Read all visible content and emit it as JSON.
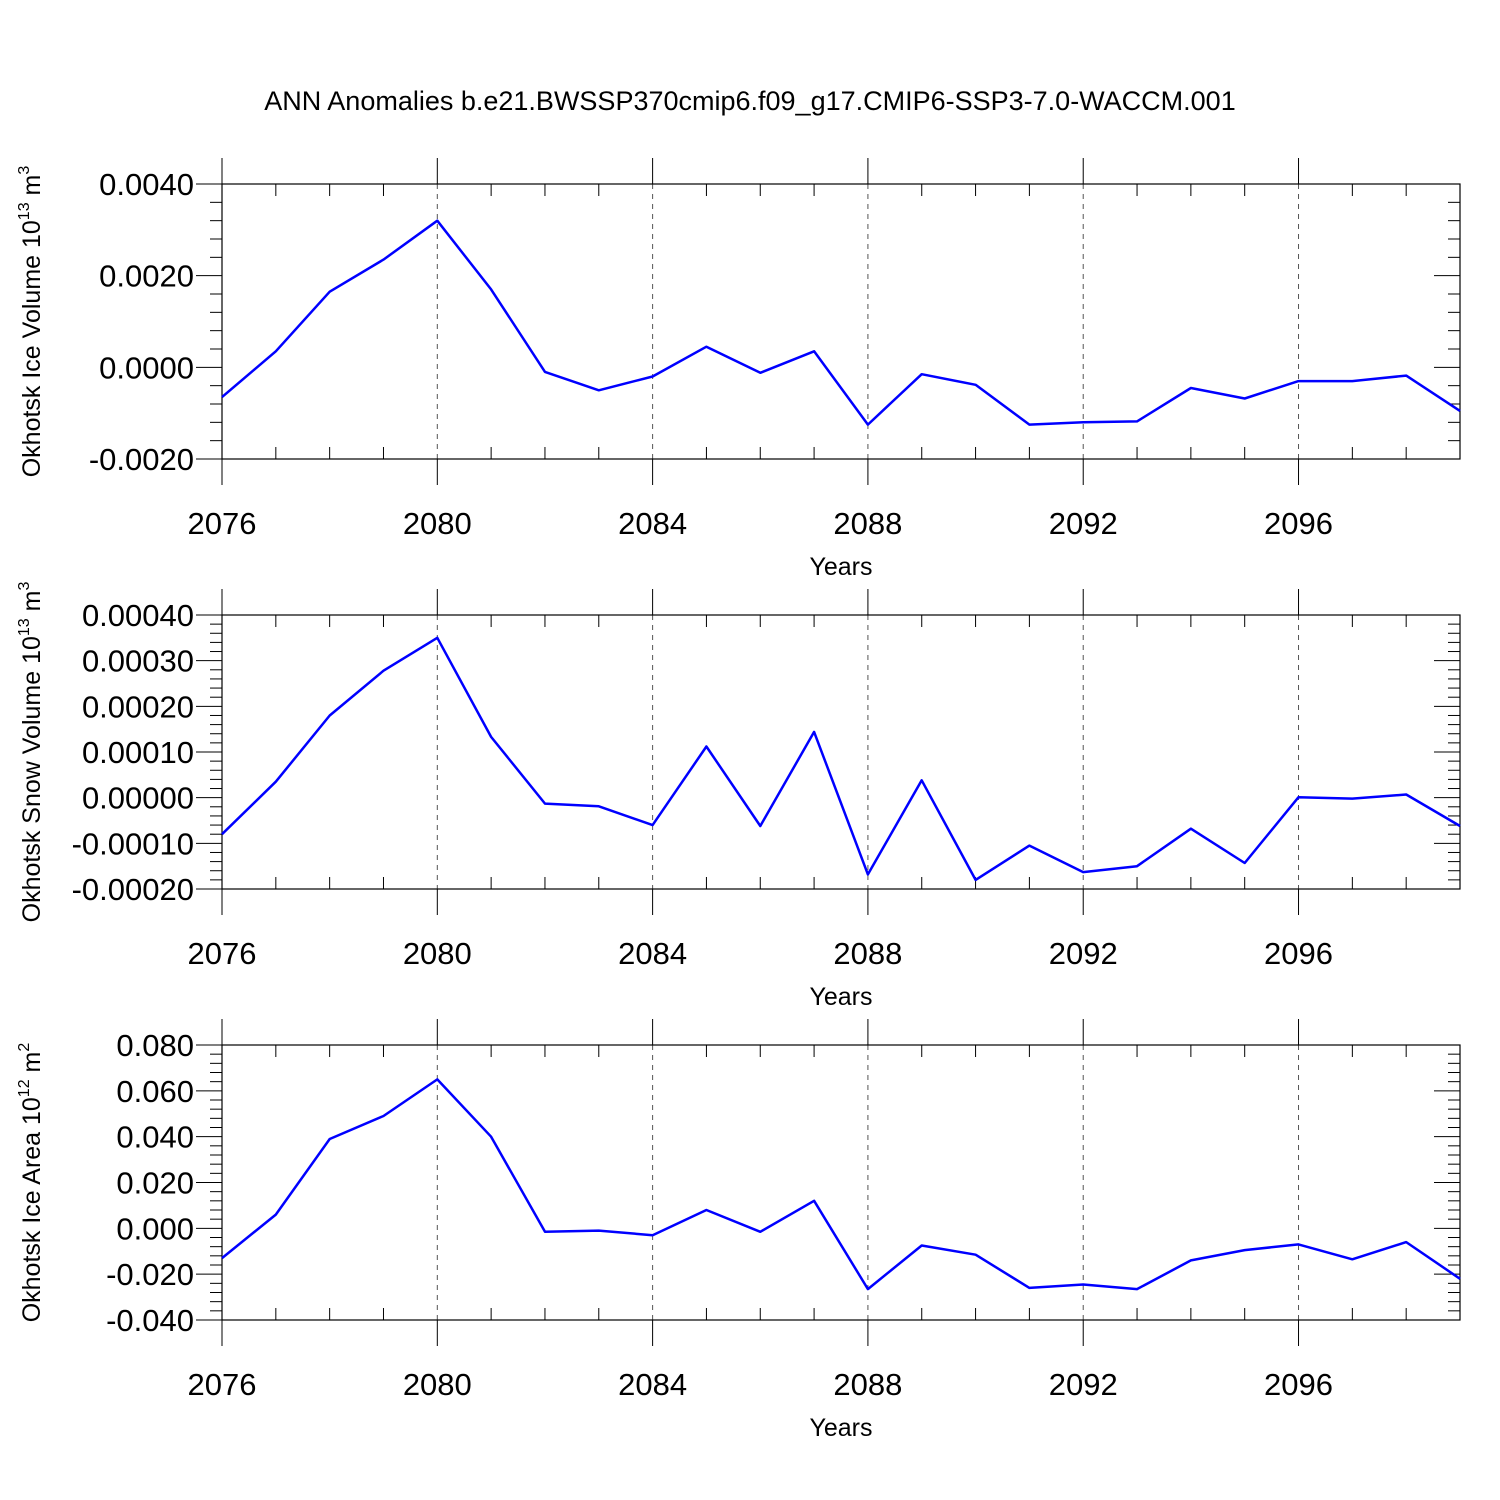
{
  "title": "ANN Anomalies b.e21.BWSSP370cmip6.f09_g17.CMIP6-SSP3-7.0-WACCM.001",
  "colors": {
    "line": "#0000ff",
    "axis": "#000000",
    "grid": "#555555"
  },
  "chart_data": [
    {
      "type": "line",
      "id": "ice-volume",
      "title": "",
      "xlabel": "Years",
      "ylabel": {
        "prefix": "Okhotsk Ice Volume 10",
        "exp1": "13",
        "mid": " m",
        "exp2": "3"
      },
      "xlim": [
        2076,
        2099
      ],
      "ylim": [
        -0.002,
        0.004
      ],
      "xticks": [
        2076,
        2080,
        2084,
        2088,
        2092,
        2096
      ],
      "xtick_labels": [
        "2076",
        "2080",
        "2084",
        "2088",
        "2092",
        "2096"
      ],
      "yticks": [
        -0.002,
        0.0,
        0.002,
        0.004
      ],
      "ytick_labels": [
        "-0.0020",
        "0.0000",
        "0.0020",
        "0.0040"
      ],
      "x": [
        2076,
        2077,
        2078,
        2079,
        2080,
        2081,
        2082,
        2083,
        2084,
        2085,
        2086,
        2087,
        2088,
        2089,
        2090,
        2091,
        2092,
        2093,
        2094,
        2095,
        2096,
        2097,
        2098,
        2099
      ],
      "values": [
        -0.00065,
        0.00035,
        0.00165,
        0.00235,
        0.0032,
        0.0017,
        -0.0001,
        -0.0005,
        -0.0002,
        0.00045,
        -0.00012,
        0.00035,
        -0.00125,
        -0.00015,
        -0.00038,
        -0.00125,
        -0.0012,
        -0.00118,
        -0.00045,
        -0.00068,
        -0.0003,
        -0.0003,
        -0.00018,
        -0.00095
      ]
    },
    {
      "type": "line",
      "id": "snow-volume",
      "title": "",
      "xlabel": "Years",
      "ylabel": {
        "prefix": "Okhotsk Snow Volume 10",
        "exp1": "13",
        "mid": " m",
        "exp2": "3"
      },
      "xlim": [
        2076,
        2099
      ],
      "ylim": [
        -0.0002,
        0.0004
      ],
      "xticks": [
        2076,
        2080,
        2084,
        2088,
        2092,
        2096
      ],
      "xtick_labels": [
        "2076",
        "2080",
        "2084",
        "2088",
        "2092",
        "2096"
      ],
      "yticks": [
        -0.0002,
        -0.0001,
        0.0,
        0.0001,
        0.0002,
        0.0003,
        0.0004
      ],
      "ytick_labels": [
        "-0.00020",
        "-0.00010",
        "0.00000",
        "0.00010",
        "0.00020",
        "0.00030",
        "0.00040"
      ],
      "x": [
        2076,
        2077,
        2078,
        2079,
        2080,
        2081,
        2082,
        2083,
        2084,
        2085,
        2086,
        2087,
        2088,
        2089,
        2090,
        2091,
        2092,
        2093,
        2094,
        2095,
        2096,
        2097,
        2098,
        2099
      ],
      "values": [
        -8e-05,
        3.5e-05,
        0.00018,
        0.000278,
        0.00035,
        0.000133,
        -1.3e-05,
        -1.9e-05,
        -6e-05,
        0.000112,
        -6.2e-05,
        0.000144,
        -0.000168,
        3.8e-05,
        -0.00018,
        -0.000105,
        -0.000163,
        -0.00015,
        -6.8e-05,
        -0.000143,
        1e-06,
        -2e-06,
        7e-06,
        -6.2e-05
      ]
    },
    {
      "type": "line",
      "id": "ice-area",
      "title": "",
      "xlabel": "Years",
      "ylabel": {
        "prefix": "Okhotsk Ice Area 10",
        "exp1": "12",
        "mid": " m",
        "exp2": "2"
      },
      "xlim": [
        2076,
        2099
      ],
      "ylim": [
        -0.04,
        0.08
      ],
      "xticks": [
        2076,
        2080,
        2084,
        2088,
        2092,
        2096
      ],
      "xtick_labels": [
        "2076",
        "2080",
        "2084",
        "2088",
        "2092",
        "2096"
      ],
      "yticks": [
        -0.04,
        -0.02,
        0.0,
        0.02,
        0.04,
        0.06,
        0.08
      ],
      "ytick_labels": [
        "-0.040",
        "-0.020",
        "0.000",
        "0.020",
        "0.040",
        "0.060",
        "0.080"
      ],
      "x": [
        2076,
        2077,
        2078,
        2079,
        2080,
        2081,
        2082,
        2083,
        2084,
        2085,
        2086,
        2087,
        2088,
        2089,
        2090,
        2091,
        2092,
        2093,
        2094,
        2095,
        2096,
        2097,
        2098,
        2099
      ],
      "values": [
        -0.013,
        0.006,
        0.039,
        0.049,
        0.065,
        0.04,
        -0.0015,
        -0.001,
        -0.003,
        0.008,
        -0.0015,
        0.012,
        -0.0265,
        -0.0075,
        -0.0115,
        -0.026,
        -0.0245,
        -0.0265,
        -0.014,
        -0.0095,
        -0.007,
        -0.0135,
        -0.006,
        -0.022
      ]
    }
  ]
}
